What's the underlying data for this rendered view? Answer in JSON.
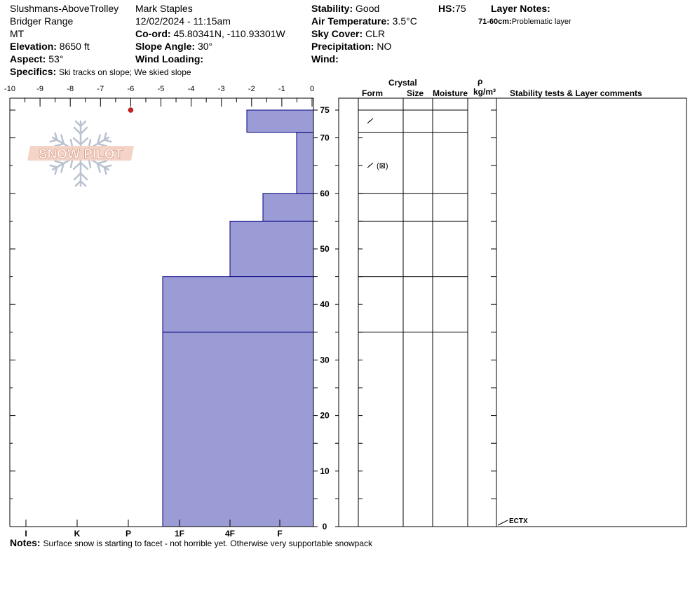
{
  "header": {
    "location": "Slushmans-AboveTrolley",
    "range": "Bridger Range",
    "state": "MT",
    "elevation_label": "Elevation:",
    "elevation": "8650 ft",
    "aspect_label": "Aspect:",
    "aspect": "53°",
    "observer": "Mark Staples",
    "datetime": "12/02/2024 - 11:15am",
    "coord_label": "Co-ord:",
    "coord": "45.80341N, -110.93301W",
    "slope_label": "Slope Angle:",
    "slope": "30°",
    "wind_loading_label": "Wind Loading:",
    "wind_loading": "",
    "stability_label": "Stability:",
    "stability": "Good",
    "air_temp_label": "Air Temperature:",
    "air_temp": "3.5°C",
    "sky_label": "Sky Cover:",
    "sky": "CLR",
    "precip_label": "Precipitation:",
    "precip": "NO",
    "wind_label": "Wind:",
    "wind": "",
    "hs_label": "HS:",
    "hs": "75",
    "layer_notes_label": "Layer Notes:",
    "layer_note_depth": "71-60cm:",
    "layer_note_text": "Problematic layer",
    "specifics_label": "Specifics:",
    "specifics": "Ski tracks on slope; We skied slope"
  },
  "notes": {
    "label": "Notes:",
    "text": "Surface snow is starting to facet - not horrible yet. Otherwise very supportable snowpack"
  },
  "logo": {
    "text": "SNOW PILOT"
  },
  "table_headers": {
    "crystal": "Crystal",
    "form": "Form",
    "size": "Size",
    "moisture": "Moisture",
    "rho": "ρ",
    "density_unit": "kg/m³",
    "stability": "Stability tests & Layer comments"
  },
  "chart_data": {
    "type": "bar",
    "title": "",
    "temperature_axis": {
      "label": "",
      "ticks": [
        -10,
        -9,
        -8,
        -7,
        -6,
        -5,
        -4,
        -3,
        -2,
        -1,
        0
      ],
      "range": [
        -10,
        0
      ]
    },
    "hardness_axis": {
      "ticks": [
        "I",
        "K",
        "P",
        "1F",
        "4F",
        "F"
      ]
    },
    "depth_axis": {
      "unit": "cm",
      "ticks": [
        0,
        10,
        20,
        30,
        40,
        50,
        60,
        70,
        75
      ],
      "range": [
        0,
        75
      ]
    },
    "temperature_points": [
      {
        "depth": 75,
        "temp": -6
      }
    ],
    "layers": [
      {
        "top": 75,
        "bottom": 71,
        "hardness": "4F+"
      },
      {
        "top": 71,
        "bottom": 60,
        "hardness": "F+"
      },
      {
        "top": 60,
        "bottom": 55,
        "hardness": "F-"
      },
      {
        "top": 55,
        "bottom": 45,
        "hardness": "4F"
      },
      {
        "top": 45,
        "bottom": 35,
        "hardness": "1F-"
      },
      {
        "top": 35,
        "bottom": 0,
        "hardness": "1F-"
      }
    ],
    "stability_tests": [
      {
        "depth": 0,
        "label": "ECTX"
      }
    ],
    "crystal_forms": [
      {
        "depth": 73,
        "symbol": "facet-icon",
        "text": ""
      },
      {
        "depth": 65,
        "symbol": "facet-icon",
        "text": "(⊠)"
      }
    ],
    "layer_boundaries": [
      75,
      71,
      60,
      55,
      45,
      35
    ],
    "bar_color": "#9b9bd6",
    "bar_outline": "#000080",
    "temp_point_color": "#cc2222"
  }
}
